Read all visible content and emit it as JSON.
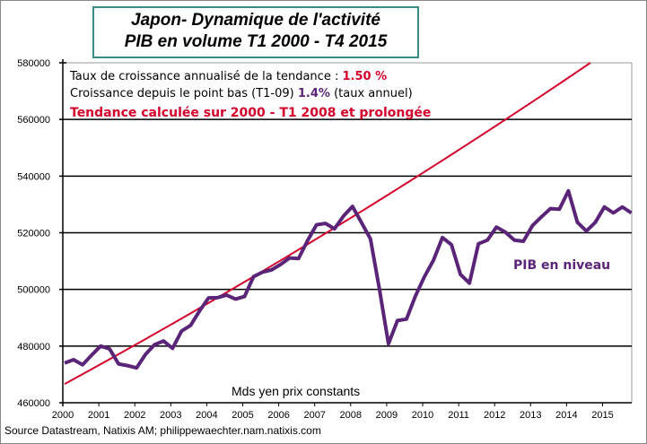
{
  "chart_data": {
    "type": "line",
    "title": [
      "Japon- Dynamique de l'activité",
      "PIB en volume T1 2000 - T4 2015"
    ],
    "ylabel": "Mds yen prix constants",
    "ylim": [
      460000,
      580000
    ],
    "yticks": [
      "460000",
      "480000",
      "500000",
      "520000",
      "540000",
      "560000",
      "580000"
    ],
    "xticks": [
      "2000",
      "2001",
      "2002",
      "2003",
      "2004",
      "2005",
      "2006",
      "2007",
      "2008",
      "2009",
      "2010",
      "2011",
      "2012",
      "2013",
      "2014",
      "2015"
    ],
    "grid": true,
    "x_start": 2000,
    "periods_per_year": 4,
    "series": [
      {
        "name": "PIB en niveau",
        "color": "#5a2478",
        "values": [
          474000,
          475200,
          473400,
          476800,
          480000,
          479000,
          473700,
          473100,
          472300,
          477100,
          480500,
          481800,
          479200,
          485300,
          487300,
          492400,
          497000,
          497100,
          498000,
          496600,
          497500,
          504500,
          506100,
          506900,
          508800,
          511100,
          510900,
          517200,
          522800,
          523300,
          521400,
          525900,
          529300,
          523600,
          517800,
          500000,
          480800,
          489000,
          489500,
          497700,
          504500,
          510300,
          518300,
          515800,
          505300,
          502200,
          516100,
          517400,
          522000,
          520200,
          517400,
          517000,
          522500,
          525600,
          528500,
          528300,
          534800,
          523700,
          520600,
          523700,
          529100,
          527000,
          529100,
          527000
        ]
      },
      {
        "name": "Tendance",
        "color": "#d2002a",
        "start_value": 466600,
        "annual_growth_pct": 1.5
      }
    ],
    "annotations": {
      "line1_text": "Taux de croissance annualisé  de la tendance : ",
      "line1_value": "1.50 %",
      "line2_text": "Croissance depuis le point bas (T1-09) ",
      "line2_value": "1.4%",
      "line2_suffix": " (taux annuel)",
      "line3": "Tendance calculée  sur 2000 - T1 2008 et prolongée",
      "series_label": "PIB en niveau"
    },
    "source": "Source Datastream, Natixis AM; philippewaechter.nam.natixis.com"
  }
}
